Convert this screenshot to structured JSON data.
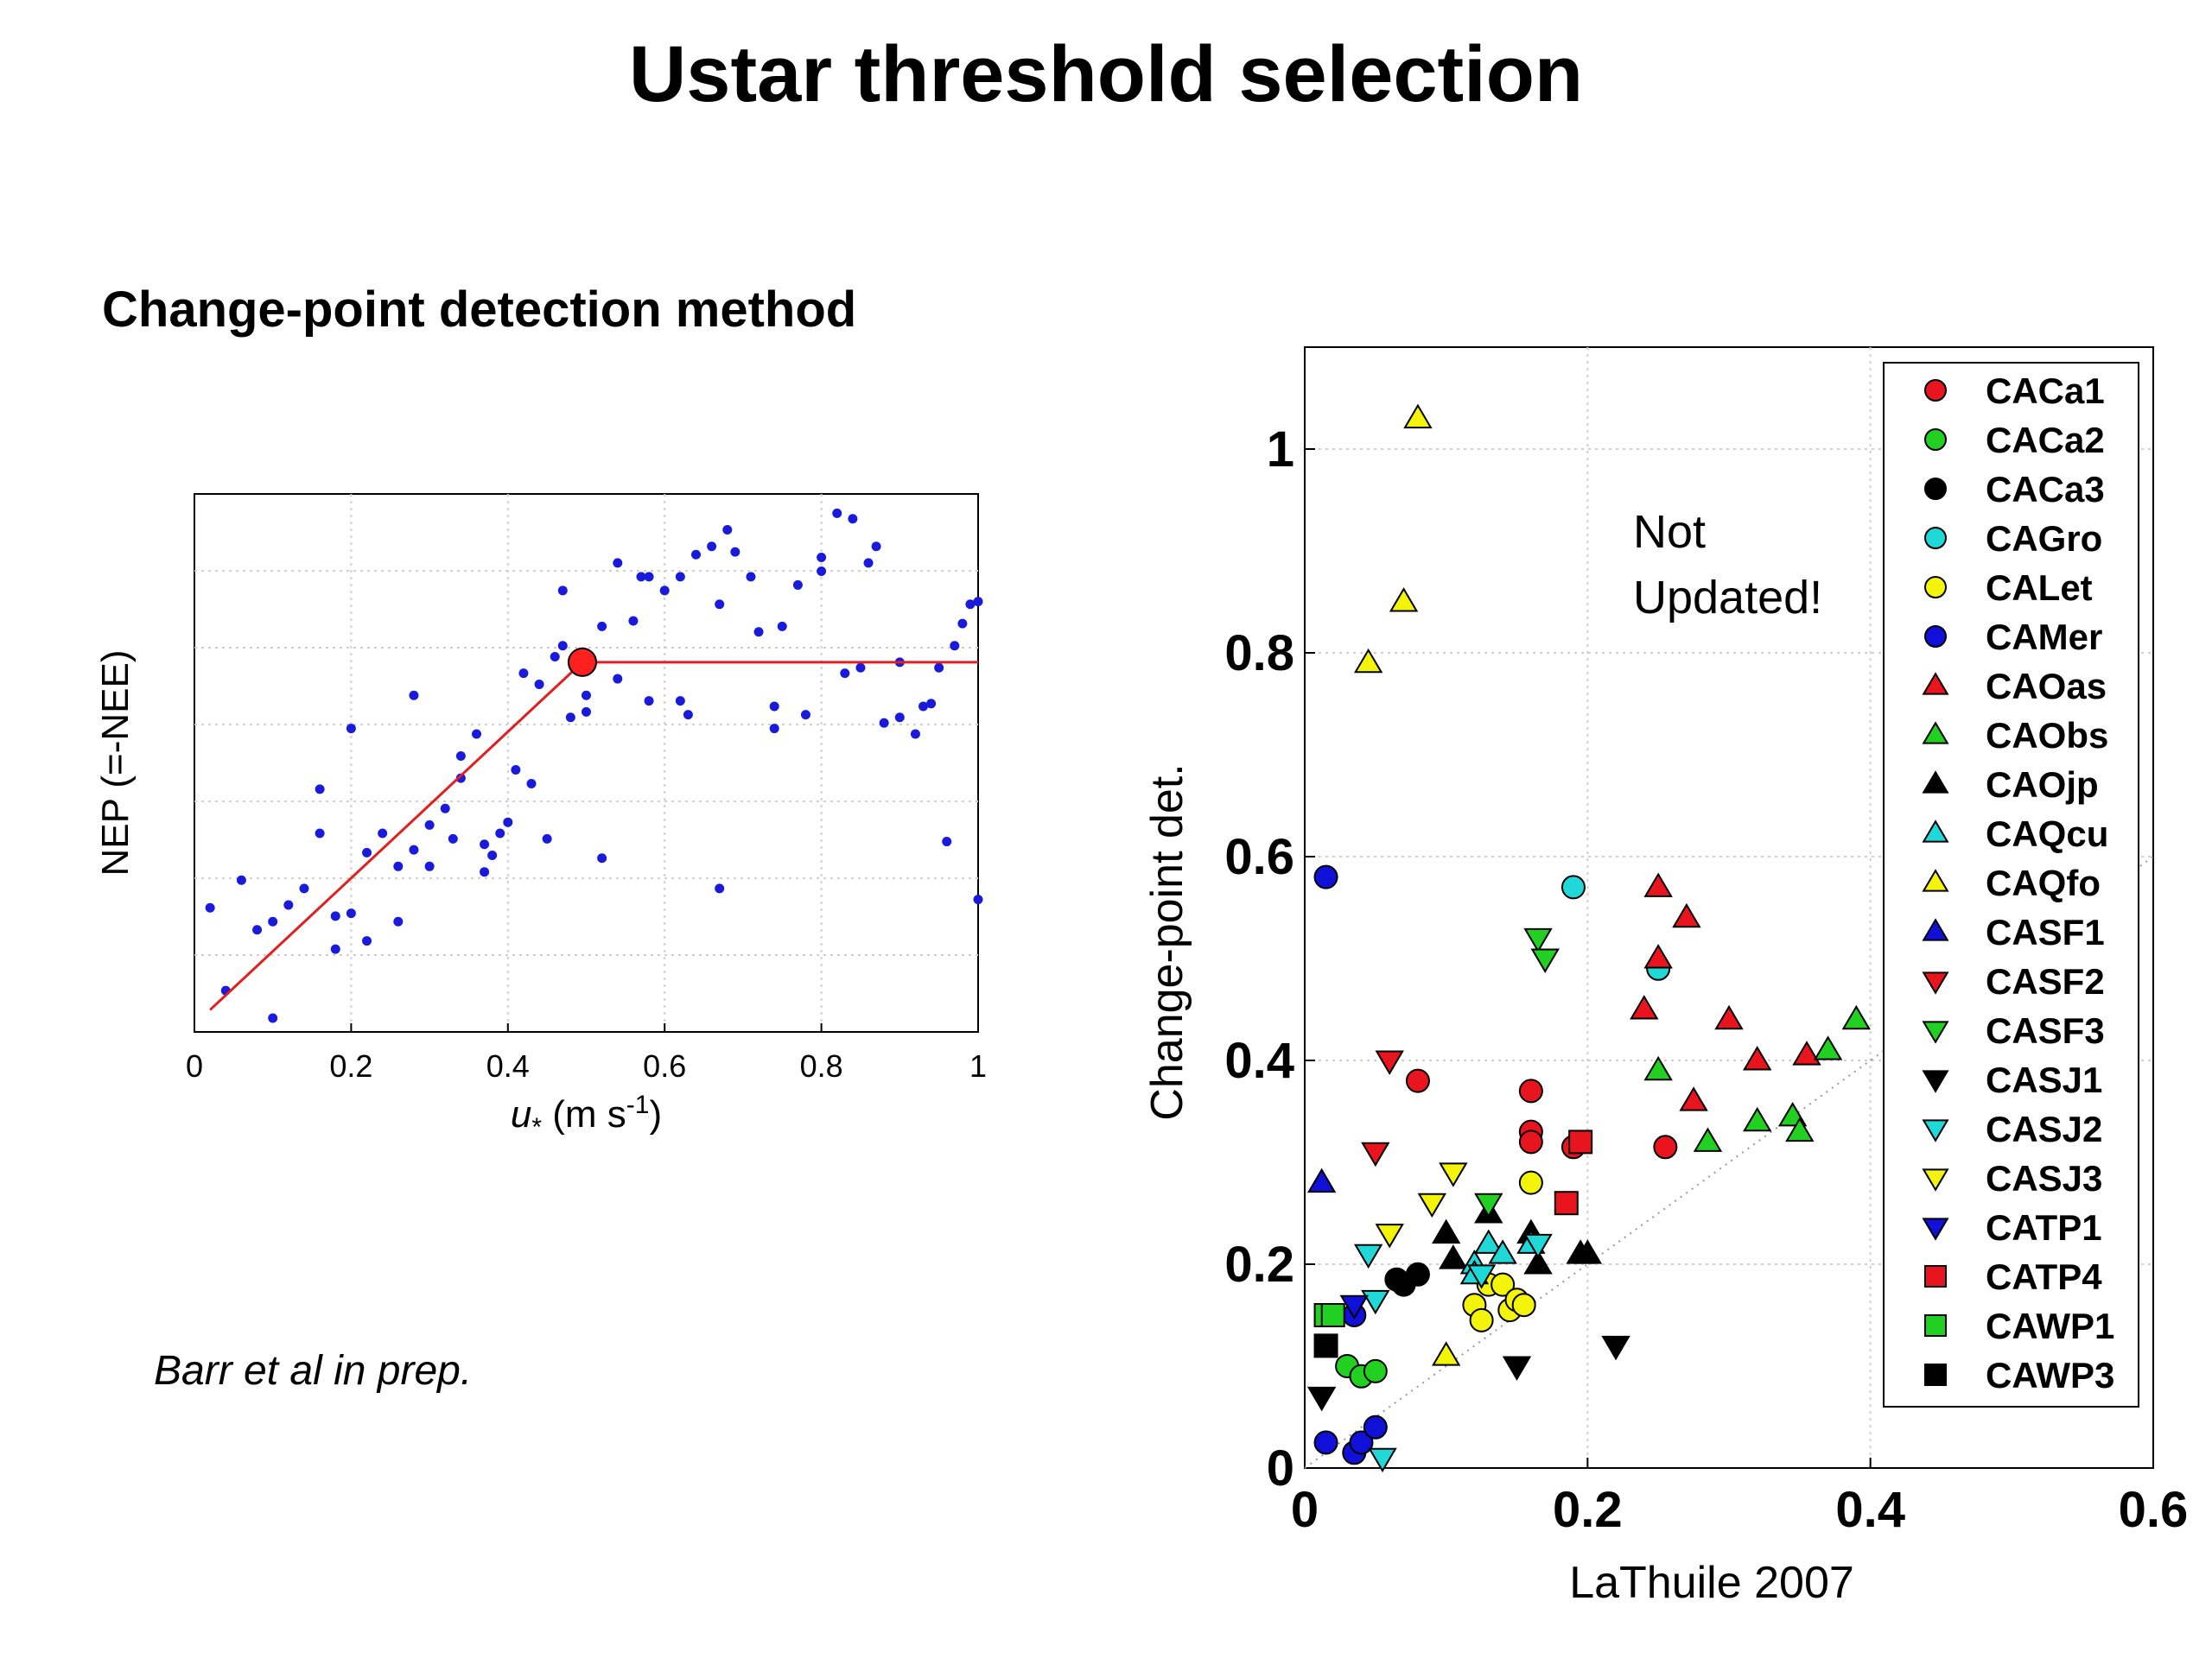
{
  "title": "Ustar threshold selection",
  "subtitle": "Change-point detection method",
  "citation": "Barr et al in prep.",
  "colors": {
    "scatter_points": "#1a1adb",
    "fit_line": "#e02020",
    "change_point": "#ff2020",
    "grid": "#cfcfcf"
  },
  "chart_data": [
    {
      "type": "scatter",
      "xlabel": "u* (m s-1)",
      "ylabel": "NEP (=-NEE)",
      "xlim": [
        0,
        1
      ],
      "x_ticks": [
        "0",
        "0.2",
        "0.4",
        "0.6",
        "0.8",
        "1"
      ],
      "y_ticks": [],
      "grid": true,
      "points": [
        [
          0.02,
          0.35
        ],
        [
          0.04,
          0.05
        ],
        [
          0.06,
          0.45
        ],
        [
          0.08,
          0.27
        ],
        [
          0.1,
          0.3
        ],
        [
          0.1,
          -0.05
        ],
        [
          0.12,
          0.36
        ],
        [
          0.14,
          0.42
        ],
        [
          0.16,
          0.78
        ],
        [
          0.16,
          0.62
        ],
        [
          0.18,
          0.32
        ],
        [
          0.18,
          0.2
        ],
        [
          0.2,
          0.33
        ],
        [
          0.2,
          1.0
        ],
        [
          0.22,
          0.55
        ],
        [
          0.22,
          0.23
        ],
        [
          0.24,
          0.62
        ],
        [
          0.26,
          0.5
        ],
        [
          0.26,
          0.3
        ],
        [
          0.28,
          0.56
        ],
        [
          0.28,
          1.12
        ],
        [
          0.3,
          0.5
        ],
        [
          0.3,
          0.65
        ],
        [
          0.32,
          0.71
        ],
        [
          0.33,
          0.6
        ],
        [
          0.34,
          0.9
        ],
        [
          0.34,
          0.82
        ],
        [
          0.36,
          0.98
        ],
        [
          0.37,
          0.58
        ],
        [
          0.37,
          0.48
        ],
        [
          0.38,
          0.54
        ],
        [
          0.39,
          0.62
        ],
        [
          0.4,
          0.66
        ],
        [
          0.41,
          0.85
        ],
        [
          0.42,
          1.2
        ],
        [
          0.43,
          0.8
        ],
        [
          0.44,
          1.16
        ],
        [
          0.45,
          0.6
        ],
        [
          0.46,
          1.26
        ],
        [
          0.47,
          1.3
        ],
        [
          0.47,
          1.5
        ],
        [
          0.48,
          1.04
        ],
        [
          0.5,
          1.06
        ],
        [
          0.5,
          1.12
        ],
        [
          0.52,
          0.53
        ],
        [
          0.52,
          1.37
        ],
        [
          0.54,
          1.18
        ],
        [
          0.54,
          1.6
        ],
        [
          0.56,
          1.39
        ],
        [
          0.57,
          1.55
        ],
        [
          0.58,
          1.1
        ],
        [
          0.58,
          1.55
        ],
        [
          0.6,
          1.5
        ],
        [
          0.62,
          1.1
        ],
        [
          0.62,
          1.55
        ],
        [
          0.63,
          1.05
        ],
        [
          0.64,
          1.63
        ],
        [
          0.66,
          1.66
        ],
        [
          0.67,
          1.45
        ],
        [
          0.67,
          0.42
        ],
        [
          0.68,
          1.72
        ],
        [
          0.69,
          1.64
        ],
        [
          0.71,
          1.55
        ],
        [
          0.72,
          1.35
        ],
        [
          0.74,
          1.08
        ],
        [
          0.74,
          1.0
        ],
        [
          0.75,
          1.37
        ],
        [
          0.77,
          1.52
        ],
        [
          0.78,
          1.05
        ],
        [
          0.8,
          1.62
        ],
        [
          0.8,
          1.57
        ],
        [
          0.82,
          1.78
        ],
        [
          0.83,
          1.2
        ],
        [
          0.84,
          1.76
        ],
        [
          0.85,
          1.22
        ],
        [
          0.86,
          1.6
        ],
        [
          0.87,
          1.66
        ],
        [
          0.88,
          1.02
        ],
        [
          0.9,
          1.24
        ],
        [
          0.9,
          1.04
        ],
        [
          0.92,
          0.98
        ],
        [
          0.93,
          1.08
        ],
        [
          0.94,
          1.09
        ],
        [
          0.95,
          1.22
        ],
        [
          0.96,
          0.59
        ],
        [
          0.97,
          1.3
        ],
        [
          0.98,
          1.38
        ],
        [
          0.99,
          1.45
        ],
        [
          1.0,
          0.38
        ],
        [
          1.0,
          1.46
        ]
      ],
      "fit_line": [
        [
          0.02,
          -0.02
        ],
        [
          0.495,
          1.24
        ],
        [
          1.0,
          1.24
        ]
      ],
      "change_point": [
        0.495,
        1.24
      ]
    },
    {
      "type": "scatter",
      "xlabel": "LaThuile 2007",
      "ylabel": "Change-point det.",
      "xlim": [
        0,
        0.6
      ],
      "ylim": [
        0,
        1.1
      ],
      "x_ticks": [
        "0",
        "0.2",
        "0.4",
        "0.6"
      ],
      "y_ticks": [
        "0",
        "0.2",
        "0.4",
        "0.6",
        "0.8",
        "1"
      ],
      "grid": true,
      "legend_position": "top-right",
      "annotation": "Not Updated!",
      "series": [
        {
          "name": "CACa1",
          "marker": "circle",
          "color": "#e8141e",
          "points": [
            [
              0.08,
              0.38
            ],
            [
              0.16,
              0.37
            ],
            [
              0.16,
              0.33
            ],
            [
              0.16,
              0.32
            ],
            [
              0.19,
              0.315
            ],
            [
              0.255,
              0.315
            ]
          ]
        },
        {
          "name": "CACa2",
          "marker": "circle",
          "color": "#22d022",
          "points": [
            [
              0.03,
              0.1
            ],
            [
              0.04,
              0.09
            ],
            [
              0.05,
              0.095
            ]
          ]
        },
        {
          "name": "CACa3",
          "marker": "circle",
          "color": "#000000",
          "points": [
            [
              0.065,
              0.185
            ],
            [
              0.07,
              0.18
            ],
            [
              0.08,
              0.19
            ]
          ]
        },
        {
          "name": "CAGro",
          "marker": "circle",
          "color": "#20d8d8",
          "points": [
            [
              0.19,
              0.57
            ],
            [
              0.25,
              0.49
            ]
          ]
        },
        {
          "name": "CALet",
          "marker": "circle",
          "color": "#f4f40a",
          "points": [
            [
              0.12,
              0.16
            ],
            [
              0.125,
              0.145
            ],
            [
              0.13,
              0.18
            ],
            [
              0.14,
              0.18
            ],
            [
              0.145,
              0.155
            ],
            [
              0.15,
              0.165
            ],
            [
              0.155,
              0.16
            ],
            [
              0.16,
              0.28
            ]
          ]
        },
        {
          "name": "CAMer",
          "marker": "circle",
          "color": "#1010d8",
          "points": [
            [
              0.015,
              0.58
            ],
            [
              0.015,
              0.025
            ],
            [
              0.035,
              0.015
            ],
            [
              0.04,
              0.025
            ],
            [
              0.05,
              0.04
            ],
            [
              0.035,
              0.15
            ]
          ]
        },
        {
          "name": "CAOas",
          "marker": "tri-up",
          "color": "#e8141e",
          "points": [
            [
              0.25,
              0.57
            ],
            [
              0.27,
              0.54
            ],
            [
              0.25,
              0.5
            ],
            [
              0.24,
              0.45
            ],
            [
              0.3,
              0.44
            ],
            [
              0.32,
              0.4
            ],
            [
              0.355,
              0.405
            ],
            [
              0.275,
              0.36
            ]
          ]
        },
        {
          "name": "CAObs",
          "marker": "tri-up",
          "color": "#22d022",
          "points": [
            [
              0.39,
              0.44
            ],
            [
              0.37,
              0.41
            ],
            [
              0.25,
              0.39
            ],
            [
              0.345,
              0.345
            ],
            [
              0.35,
              0.33
            ],
            [
              0.32,
              0.34
            ],
            [
              0.285,
              0.32
            ]
          ]
        },
        {
          "name": "CAOjp",
          "marker": "tri-up",
          "color": "#000000",
          "points": [
            [
              0.1,
              0.23
            ],
            [
              0.13,
              0.25
            ],
            [
              0.16,
              0.23
            ],
            [
              0.105,
              0.205
            ],
            [
              0.165,
              0.2
            ],
            [
              0.195,
              0.21
            ],
            [
              0.2,
              0.21
            ]
          ]
        },
        {
          "name": "CAQcu",
          "marker": "tri-up",
          "color": "#20d8d8",
          "points": [
            [
              0.12,
              0.2
            ],
            [
              0.13,
              0.22
            ],
            [
              0.14,
              0.21
            ],
            [
              0.16,
              0.22
            ],
            [
              0.12,
              0.19
            ]
          ]
        },
        {
          "name": "CAQfo",
          "marker": "tri-up",
          "color": "#f4f40a",
          "points": [
            [
              0.08,
              1.03
            ],
            [
              0.07,
              0.85
            ],
            [
              0.045,
              0.79
            ],
            [
              0.1,
              0.11
            ]
          ]
        },
        {
          "name": "CASF1",
          "marker": "tri-up",
          "color": "#1010d8",
          "points": [
            [
              0.012,
              0.28
            ]
          ]
        },
        {
          "name": "CASF2",
          "marker": "tri-down",
          "color": "#e8141e",
          "points": [
            [
              0.06,
              0.4
            ],
            [
              0.05,
              0.31
            ]
          ]
        },
        {
          "name": "CASF3",
          "marker": "tri-down",
          "color": "#22d022",
          "points": [
            [
              0.165,
              0.52
            ],
            [
              0.17,
              0.5
            ],
            [
              0.13,
              0.26
            ]
          ]
        },
        {
          "name": "CASJ1",
          "marker": "tri-down",
          "color": "#000000",
          "points": [
            [
              0.012,
              0.07
            ],
            [
              0.15,
              0.1
            ],
            [
              0.22,
              0.12
            ]
          ]
        },
        {
          "name": "CASJ2",
          "marker": "tri-down",
          "color": "#20d8d8",
          "points": [
            [
              0.045,
              0.21
            ],
            [
              0.05,
              0.165
            ],
            [
              0.055,
              0.01
            ],
            [
              0.125,
              0.19
            ],
            [
              0.165,
              0.22
            ]
          ]
        },
        {
          "name": "CASJ3",
          "marker": "tri-down",
          "color": "#f4f40a",
          "points": [
            [
              0.105,
              0.29
            ],
            [
              0.09,
              0.26
            ],
            [
              0.06,
              0.23
            ]
          ]
        },
        {
          "name": "CATP1",
          "marker": "tri-down",
          "color": "#1010d8",
          "points": [
            [
              0.035,
              0.16
            ]
          ]
        },
        {
          "name": "CATP4",
          "marker": "square",
          "color": "#e8141e",
          "points": [
            [
              0.185,
              0.26
            ],
            [
              0.195,
              0.32
            ]
          ]
        },
        {
          "name": "CAWP1",
          "marker": "square",
          "color": "#22d022",
          "points": [
            [
              0.015,
              0.15
            ],
            [
              0.02,
              0.15
            ]
          ]
        },
        {
          "name": "CAWP3",
          "marker": "square",
          "color": "#000000",
          "points": [
            [
              0.015,
              0.12
            ]
          ]
        }
      ]
    }
  ]
}
